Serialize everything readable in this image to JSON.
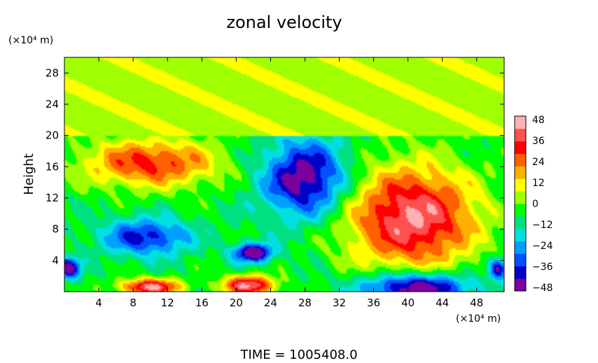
{
  "chart_data": {
    "type": "heatmap",
    "title": "zonal velocity",
    "xlabel": "",
    "ylabel": "Height",
    "x_unit": "(×10⁴ m)",
    "y_unit": "(×10⁴ m)",
    "xlim": [
      0,
      51.2
    ],
    "ylim": [
      0,
      30
    ],
    "x_ticks": [
      "4",
      "8",
      "12",
      "16",
      "20",
      "24",
      "28",
      "32",
      "36",
      "40",
      "44",
      "48"
    ],
    "y_ticks": [
      "4",
      "8",
      "12",
      "16",
      "20",
      "24",
      "28"
    ],
    "colorbar": {
      "min": -48,
      "max": 48,
      "labels": [
        "48",
        "36",
        "24",
        "12",
        "0",
        "−12",
        "−24",
        "−36",
        "−48"
      ],
      "colors": [
        "#7a00a0",
        "#0000c8",
        "#0050ff",
        "#00a0ff",
        "#00e0e0",
        "#00e080",
        "#00ff00",
        "#a0ff00",
        "#ffff00",
        "#ffb000",
        "#ff6000",
        "#ff0000",
        "#ff5050",
        "#ffb0b0"
      ]
    },
    "features": [
      {
        "cx": 40.5,
        "cy": 9.5,
        "rx": 8.5,
        "ry": 7.5,
        "value": 48
      },
      {
        "cx": 28.0,
        "cy": 14.5,
        "rx": 5.5,
        "ry": 5.5,
        "value": -42
      },
      {
        "cx": 22.0,
        "cy": 5.0,
        "rx": 2.5,
        "ry": 1.3,
        "value": -48
      },
      {
        "cx": 41.0,
        "cy": 0.5,
        "rx": 7.0,
        "ry": 2.2,
        "value": -48
      },
      {
        "cx": 10.0,
        "cy": 16.5,
        "rx": 9.0,
        "ry": 3.5,
        "value": 36
      },
      {
        "cx": 10.0,
        "cy": 0.6,
        "rx": 4.0,
        "ry": 1.2,
        "value": 48
      },
      {
        "cx": 21.5,
        "cy": 0.8,
        "rx": 3.5,
        "ry": 1.4,
        "value": 48
      },
      {
        "cx": 9.5,
        "cy": 7.0,
        "rx": 5.5,
        "ry": 2.6,
        "value": -32
      },
      {
        "cx": 0.5,
        "cy": 3.0,
        "rx": 1.5,
        "ry": 1.5,
        "value": -40
      },
      {
        "cx": 50.5,
        "cy": 3.0,
        "rx": 1.2,
        "ry": 1.5,
        "value": -40
      }
    ]
  },
  "time_label": "TIME  =  1005408.0"
}
